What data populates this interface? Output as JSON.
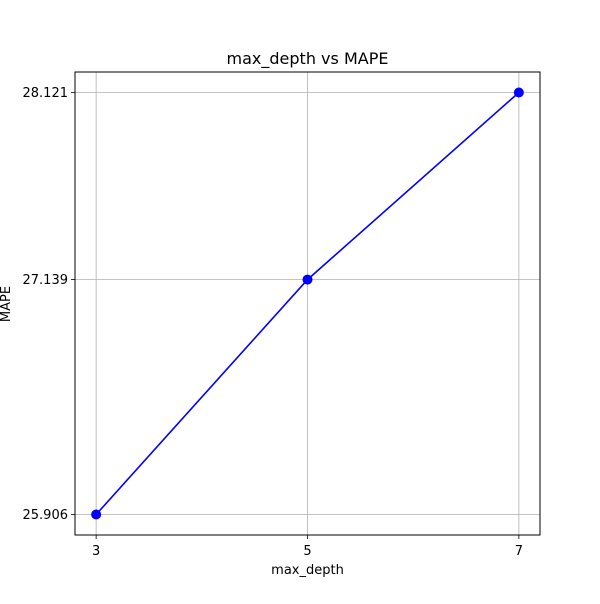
{
  "chart_data": {
    "type": "line",
    "title": "max_depth vs MAPE",
    "xlabel": "max_depth",
    "ylabel": "MAPE",
    "x": [
      3,
      5,
      7
    ],
    "y": [
      25.906,
      27.139,
      28.121
    ],
    "xticks": [
      "3",
      "5",
      "7"
    ],
    "yticks": [
      "25.906",
      "27.139",
      "28.121"
    ],
    "xlim": [
      2.8,
      7.2
    ],
    "ylim": [
      25.7985,
      28.2285
    ],
    "grid": true,
    "marker": "circle",
    "colors": {
      "line": "#0000ff",
      "grid": "#b0b0b0",
      "axes": "#000000"
    }
  }
}
